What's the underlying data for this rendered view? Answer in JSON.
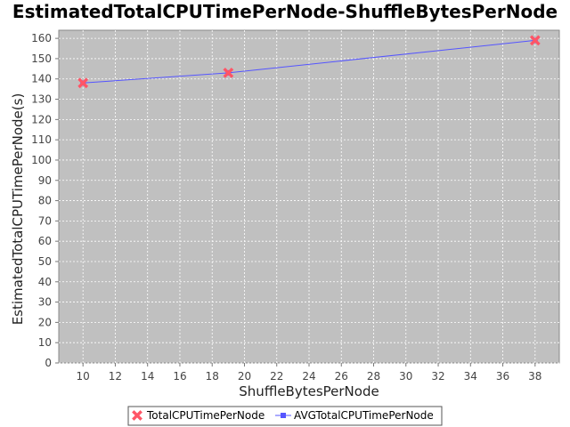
{
  "chart_data": {
    "type": "line",
    "title": "EstimatedTotalCPUTimePerNode-ShuffleBytesPerNode",
    "xlabel": "ShuffleBytesPerNode",
    "ylabel": "EstimatedTotalCPUTimePerNode(s)",
    "xlim": [
      8.5,
      39.5
    ],
    "ylim": [
      0,
      164
    ],
    "x_ticks": [
      10,
      12,
      14,
      16,
      18,
      20,
      22,
      24,
      26,
      28,
      30,
      32,
      34,
      36,
      38
    ],
    "y_ticks": [
      0,
      10,
      20,
      30,
      40,
      50,
      60,
      70,
      80,
      90,
      100,
      110,
      120,
      130,
      140,
      150,
      160
    ],
    "grid": true,
    "legend_position": "bottom",
    "series": [
      {
        "name": "TotalCPUTimePerNode",
        "style": "markers",
        "marker": "x",
        "color": "#ff5566",
        "x": [
          10,
          19,
          38
        ],
        "y": [
          138,
          143,
          159
        ]
      },
      {
        "name": "AVGTotalCPUTimePerNode",
        "style": "line",
        "marker": "square",
        "color": "#5555ff",
        "x": [
          10,
          19,
          38
        ],
        "y": [
          138,
          143,
          159
        ]
      }
    ],
    "plot_background": "#c0c0c0"
  }
}
